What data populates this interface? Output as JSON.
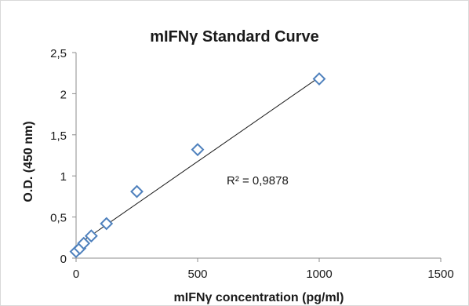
{
  "chart_data": {
    "type": "scatter",
    "title": "mIFNγ Standard Curve",
    "xlabel": "mIFNγ concentration (pg/ml)",
    "ylabel": "O.D. (450 nm)",
    "xlim": [
      0,
      1500
    ],
    "ylim": [
      0,
      2.5
    ],
    "x_ticks": [
      0,
      500,
      1000,
      1500
    ],
    "y_ticks": [
      0,
      0.5,
      1,
      1.5,
      2,
      2.5
    ],
    "x_tick_labels": [
      "0",
      "500",
      "1000",
      "1500"
    ],
    "y_tick_labels": [
      "0",
      "0,5",
      "1",
      "1,5",
      "2",
      "2,5"
    ],
    "grid": false,
    "marker": "diamond-open",
    "marker_color": "#4f81bd",
    "trendline": {
      "type": "linear",
      "x_range": [
        0,
        1000
      ],
      "y_range": [
        0.15,
        2.2
      ],
      "color": "#1a1a1a"
    },
    "annotation": "R² = 0,9878",
    "points": [
      {
        "x": 0,
        "y": 0.08
      },
      {
        "x": 15.6,
        "y": 0.12
      },
      {
        "x": 31.3,
        "y": 0.18
      },
      {
        "x": 62.5,
        "y": 0.27
      },
      {
        "x": 125,
        "y": 0.42
      },
      {
        "x": 250,
        "y": 0.81
      },
      {
        "x": 500,
        "y": 1.32
      },
      {
        "x": 1000,
        "y": 2.18
      }
    ]
  }
}
